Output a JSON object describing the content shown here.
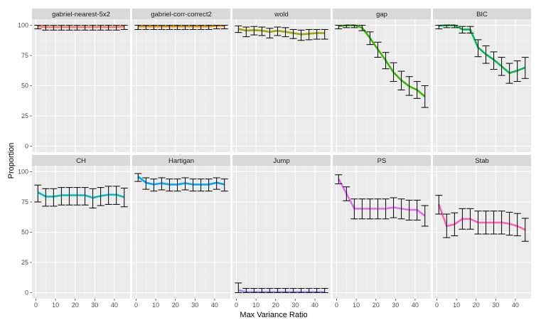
{
  "chart_data": {
    "type": "line",
    "xlabel": "Max Variance Ratio",
    "ylabel": "Proportion",
    "xlim": [
      -2,
      48
    ],
    "ylim": [
      -5,
      105
    ],
    "x_ticks": [
      0,
      10,
      20,
      30,
      40
    ],
    "x_tick_labels": [
      "0",
      "10",
      "20",
      "30",
      "40"
    ],
    "y_ticks": [
      0,
      25,
      50,
      75,
      100
    ],
    "y_tick_labels": [
      "0",
      "25",
      "50",
      "75",
      "100"
    ],
    "x": [
      1,
      5,
      9,
      13,
      17,
      21,
      25,
      29,
      33,
      37,
      41,
      45
    ],
    "grid": true,
    "legend": "none",
    "layout": "2 rows x 5 columns",
    "panels": [
      {
        "name": "gabriel-nearest-5x2",
        "color": "#F8766D",
        "values": [
          99,
          98.5,
          98.5,
          98.5,
          98.5,
          98.5,
          98.5,
          98.5,
          98.5,
          98.5,
          98.5,
          99
        ],
        "lower": [
          97,
          96,
          96,
          96,
          96,
          96,
          96,
          96,
          96,
          96,
          96,
          96.5
        ],
        "upper": [
          100,
          100,
          100,
          100,
          100,
          100,
          100,
          100,
          100,
          100,
          100,
          100
        ]
      },
      {
        "name": "gabriel-corr-correct2",
        "color": "#D89000",
        "values": [
          99,
          99,
          99,
          99,
          99,
          99,
          99,
          99,
          99,
          99,
          99.5,
          99.5
        ],
        "lower": [
          96.5,
          96.5,
          96.5,
          96.5,
          96.5,
          96.5,
          96.5,
          96.5,
          96.5,
          96.5,
          97,
          97
        ],
        "upper": [
          100,
          100,
          100,
          100,
          100,
          100,
          100,
          100,
          100,
          100,
          100,
          100
        ]
      },
      {
        "name": "wold",
        "color": "#A3A500",
        "values": [
          97,
          95.5,
          96,
          95.5,
          94.5,
          95.5,
          94.5,
          93.5,
          92.5,
          93,
          93.5,
          93.5
        ],
        "lower": [
          94,
          90.5,
          92,
          91.5,
          89.5,
          91.5,
          90.5,
          89,
          87.5,
          88,
          88.5,
          88.5
        ],
        "upper": [
          99.5,
          98.5,
          99,
          98.5,
          97.5,
          98.5,
          98,
          96.5,
          96,
          96.5,
          96.5,
          96.5
        ]
      },
      {
        "name": "gap",
        "color": "#39B600",
        "values": [
          99,
          100,
          100,
          98,
          89.5,
          80,
          71,
          61,
          54.5,
          49.5,
          46.5,
          41
        ],
        "lower": [
          97,
          98,
          98,
          95.5,
          84,
          73.5,
          64,
          53.5,
          46.5,
          42,
          39.5,
          32
        ],
        "upper": [
          100,
          100,
          100,
          100,
          94.5,
          86,
          77.5,
          69,
          62,
          57.5,
          53.5,
          50
        ]
      },
      {
        "name": "BIC",
        "color": "#00BB4E",
        "values": [
          99.5,
          100,
          100,
          96.5,
          96.5,
          81.5,
          76,
          71.5,
          66,
          60.5,
          62.5,
          65
        ],
        "lower": [
          97,
          98,
          98,
          93.5,
          93.5,
          74,
          68.5,
          63.5,
          58.5,
          52,
          53.5,
          56
        ],
        "upper": [
          100,
          100,
          100,
          99,
          99,
          88,
          83,
          78,
          73.5,
          68.5,
          70.5,
          73.5
        ]
      },
      {
        "name": "CH",
        "color": "#00BFC4",
        "values": [
          83,
          79.5,
          79.5,
          80.5,
          80.5,
          80.5,
          80.5,
          78.5,
          80,
          81,
          81,
          79
        ],
        "lower": [
          75,
          71.5,
          71.5,
          72.5,
          72.5,
          72.5,
          72.5,
          70,
          72,
          73,
          73,
          71
        ],
        "upper": [
          89,
          86,
          86,
          87,
          87,
          87,
          87,
          86,
          87,
          88,
          88,
          86.5
        ]
      },
      {
        "name": "Hartigan",
        "color": "#00A5FF",
        "values": [
          96,
          91,
          89.5,
          90.5,
          89.5,
          89.5,
          90.5,
          89.5,
          89.5,
          89.5,
          91,
          89.5
        ],
        "lower": [
          92,
          85.5,
          84,
          85,
          84,
          84,
          85,
          84,
          84,
          84,
          85.5,
          84
        ],
        "upper": [
          98.5,
          95,
          94,
          95,
          94,
          94,
          95,
          94,
          94,
          94,
          95,
          94
        ]
      },
      {
        "name": "Jump",
        "color": "#9590FF",
        "values": [
          2,
          0.5,
          0.5,
          0.5,
          0.5,
          0.5,
          0.5,
          0.5,
          0.5,
          0.5,
          0.5,
          0.5
        ],
        "lower": [
          0,
          0,
          0,
          0,
          0,
          0,
          0,
          0,
          0,
          0,
          0,
          0
        ],
        "upper": [
          8,
          3.5,
          3.5,
          3.5,
          3.5,
          3.5,
          3.5,
          3.5,
          3.5,
          3.5,
          3.5,
          3.5
        ]
      },
      {
        "name": "PS",
        "color": "#E76BF3",
        "values": [
          94,
          82,
          69.5,
          69.5,
          69.5,
          69.5,
          69.5,
          70.5,
          69.5,
          68.5,
          68.5,
          63.5
        ],
        "lower": [
          90,
          76,
          61,
          61,
          61,
          61,
          61,
          62,
          61,
          60,
          60,
          55
        ],
        "upper": [
          97.5,
          87.5,
          77.5,
          77.5,
          77.5,
          77.5,
          77.5,
          78.5,
          77.5,
          76.5,
          76.5,
          72
        ]
      },
      {
        "name": "Stab",
        "color": "#FF62BC",
        "values": [
          73,
          55,
          56.5,
          61,
          61,
          58,
          58,
          58,
          58,
          57,
          55,
          52
        ],
        "lower": [
          65,
          45.5,
          47,
          52.5,
          52.5,
          48.5,
          48.5,
          48.5,
          48.5,
          47.5,
          47,
          42.5
        ],
        "upper": [
          80.5,
          65,
          66,
          69.5,
          69.5,
          67.5,
          67.5,
          67.5,
          67.5,
          66.5,
          65.5,
          61.5
        ]
      }
    ]
  }
}
